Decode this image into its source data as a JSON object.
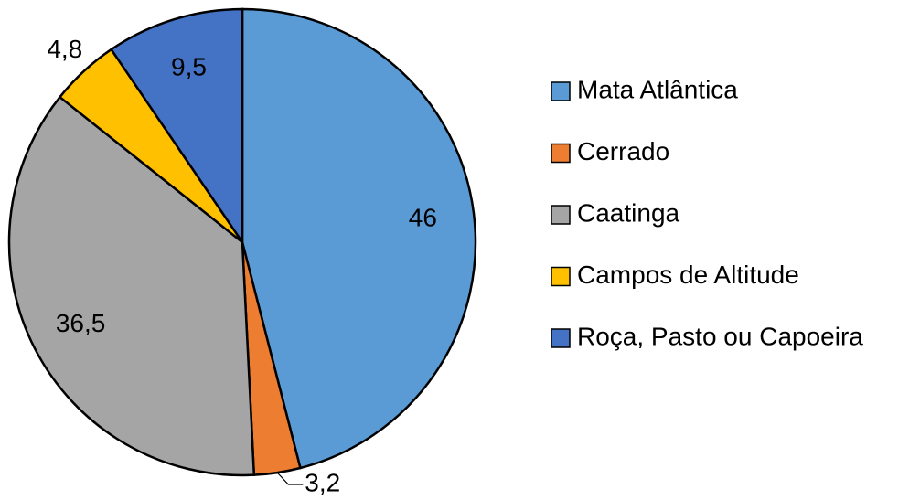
{
  "chart_data": {
    "type": "pie",
    "categories": [
      "Mata Atlântica",
      "Cerrado",
      "Caatinga",
      "Campos de Altitude",
      "Roça, Pasto ou Capoeira"
    ],
    "values": [
      46,
      3.2,
      36.5,
      4.8,
      9.5
    ],
    "value_labels": [
      "46",
      "3,2",
      "36,5",
      "4,8",
      "9,5"
    ],
    "colors": [
      "#5b9bd5",
      "#ed7d31",
      "#a5a5a5",
      "#ffc000",
      "#4472c4"
    ],
    "legend": "right"
  }
}
